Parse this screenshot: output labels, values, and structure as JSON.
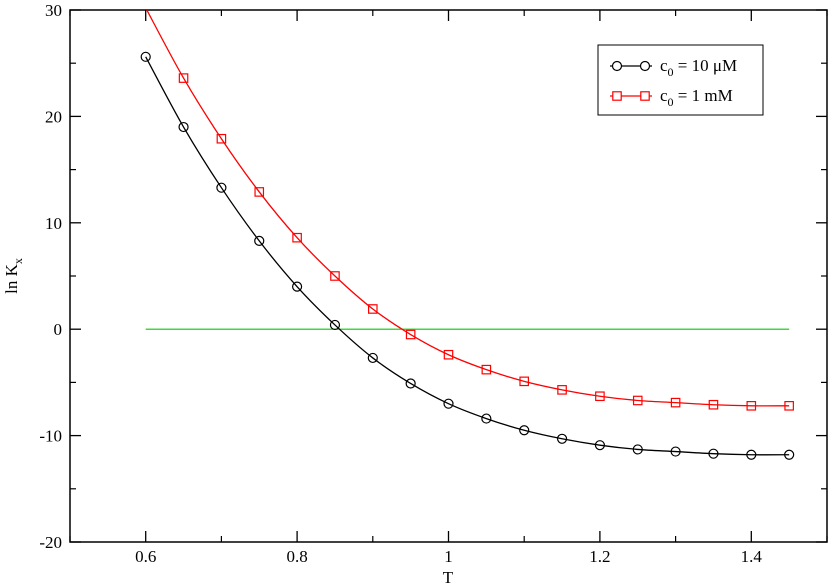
{
  "chart_data": {
    "type": "line",
    "title": "",
    "xlabel": "T",
    "ylabel": "ln K",
    "ylabel_subscript": "x",
    "xlim": [
      0.5,
      1.5
    ],
    "ylim": [
      -20,
      30
    ],
    "xticks": [
      0.6,
      0.8,
      1.0,
      1.2,
      1.4
    ],
    "xtick_labels": [
      "0.6",
      "0.8",
      "1",
      "1.2",
      "1.4"
    ],
    "yticks": [
      -20,
      -10,
      0,
      10,
      20,
      30
    ],
    "ytick_labels": [
      "-20",
      "-10",
      "0",
      "10",
      "20",
      "30"
    ],
    "grid": false,
    "legend_position": "top-right",
    "series": [
      {
        "name_main": "c",
        "name_sub": "0",
        "name_rest": " = 10 μM",
        "color": "#000000",
        "marker": "circle",
        "x": [
          0.6,
          0.65,
          0.7,
          0.75,
          0.8,
          0.85,
          0.9,
          0.95,
          1.0,
          1.05,
          1.1,
          1.15,
          1.2,
          1.25,
          1.3,
          1.35,
          1.4,
          1.45
        ],
        "y": [
          25.6,
          19.0,
          13.3,
          8.3,
          4.0,
          0.4,
          -2.7,
          -5.1,
          -7.0,
          -8.4,
          -9.5,
          -10.3,
          -10.9,
          -11.3,
          -11.5,
          -11.7,
          -11.8,
          -11.8
        ]
      },
      {
        "name_main": "c",
        "name_sub": "0",
        "name_rest": " = 1 mM",
        "color": "#ff0000",
        "marker": "square",
        "x": [
          0.6,
          0.65,
          0.7,
          0.75,
          0.8,
          0.85,
          0.9,
          0.95,
          1.0,
          1.05,
          1.1,
          1.15,
          1.2,
          1.25,
          1.3,
          1.35,
          1.4,
          1.45
        ],
        "y": [
          30.2,
          23.6,
          17.9,
          12.9,
          8.6,
          5.0,
          1.9,
          -0.5,
          -2.4,
          -3.8,
          -4.9,
          -5.7,
          -6.3,
          -6.7,
          -6.9,
          -7.1,
          -7.2,
          -7.2
        ]
      }
    ],
    "reference_line": {
      "color": "#00cc00",
      "x": [
        0.6,
        1.45
      ],
      "y": [
        0,
        0
      ]
    }
  }
}
